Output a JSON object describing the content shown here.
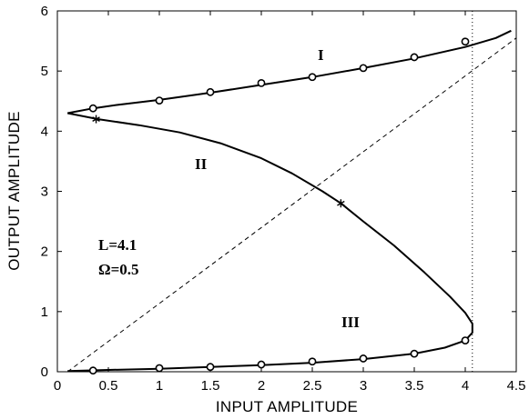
{
  "chart_data": {
    "type": "line",
    "xlabel": "INPUT  AMPLITUDE",
    "ylabel": "OUTPUT  AMPLITUDE",
    "xlim": [
      0,
      4.5
    ],
    "ylim": [
      0,
      6
    ],
    "xticks": [
      "0",
      "0.5",
      "1",
      "1.5",
      "2",
      "2.5",
      "3",
      "3.5",
      "4",
      "4.5"
    ],
    "yticks": [
      "0",
      "1",
      "2",
      "3",
      "4",
      "5",
      "6"
    ],
    "grid": false,
    "legend": "none",
    "annotations": [
      "I",
      "II",
      "III",
      "L=4.1",
      "Ω=0.5"
    ],
    "series": [
      {
        "style": "solid",
        "x": [
          0.1,
          0.35,
          0.6,
          1.0,
          1.5,
          2.0,
          2.5,
          3.0,
          3.5,
          4.0,
          4.3,
          4.45
        ],
        "y": [
          4.3,
          4.38,
          4.44,
          4.52,
          4.64,
          4.77,
          4.9,
          5.05,
          5.21,
          5.4,
          5.55,
          5.67
        ]
      },
      {
        "style": "solid",
        "x": [
          0.1,
          0.4,
          0.8,
          1.2,
          1.6,
          2.0,
          2.3,
          2.6,
          2.78,
          3.0,
          3.3,
          3.6,
          3.85,
          4.0,
          4.07,
          4.07,
          4.0,
          3.8,
          3.5,
          3.0,
          2.5,
          2.0,
          1.5,
          1.0,
          0.5,
          0.1
        ],
        "y": [
          4.3,
          4.2,
          4.1,
          3.98,
          3.8,
          3.55,
          3.3,
          3.0,
          2.8,
          2.5,
          2.1,
          1.65,
          1.25,
          0.98,
          0.8,
          0.65,
          0.52,
          0.4,
          0.3,
          0.21,
          0.15,
          0.11,
          0.08,
          0.05,
          0.03,
          0.01
        ]
      },
      {
        "style": "dashed",
        "x": [
          0.1,
          4.5
        ],
        "y": [
          0,
          5.55
        ]
      },
      {
        "style": "dotted",
        "x": [
          4.07,
          4.07
        ],
        "y": [
          0,
          6
        ]
      }
    ],
    "circle_markers": {
      "x": [
        0.35,
        1.0,
        1.5,
        2.0,
        2.5,
        3.0,
        3.5,
        4.0,
        0.35,
        1.0,
        1.5,
        2.0,
        2.5,
        3.0,
        3.5,
        4.0
      ],
      "y": [
        4.38,
        4.51,
        4.65,
        4.8,
        4.9,
        5.05,
        5.23,
        5.49,
        0.02,
        0.06,
        0.08,
        0.12,
        0.17,
        0.22,
        0.3,
        0.52
      ]
    },
    "star_markers": {
      "x": [
        0.38,
        2.78
      ],
      "y": [
        4.2,
        2.8
      ]
    }
  }
}
